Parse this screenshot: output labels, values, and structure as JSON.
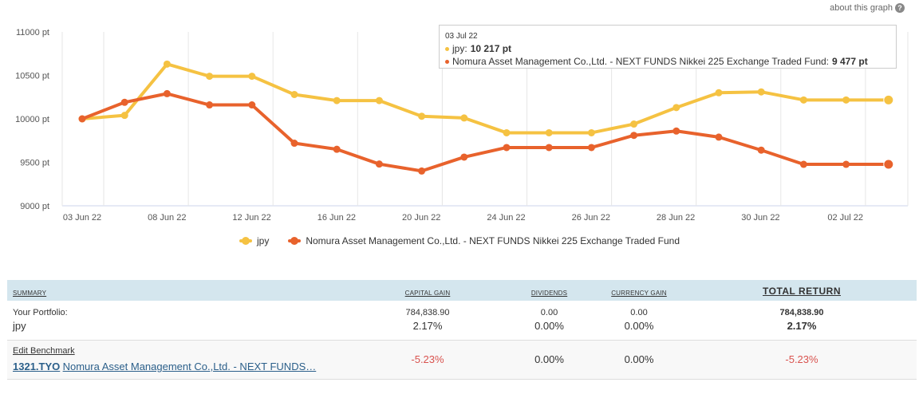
{
  "about": {
    "label": "about this graph",
    "icon": "help-icon"
  },
  "chart_data": {
    "type": "line",
    "y_ticks": [
      "11000 pt",
      "10500 pt",
      "10000 pt",
      "9500 pt",
      "9000 pt"
    ],
    "y_values": [
      11000,
      10500,
      10000,
      9500,
      9000
    ],
    "x_ticks": [
      "03 Jun 22",
      "08 Jun 22",
      "12 Jun 22",
      "16 Jun 22",
      "20 Jun 22",
      "24 Jun 22",
      "26 Jun 22",
      "28 Jun 22",
      "30 Jun 22",
      "02 Jul 22"
    ],
    "ylim": [
      9000,
      11000
    ],
    "grid": "vertical",
    "legend_position": "bottom-center",
    "series": [
      {
        "name": "jpy",
        "color": "#f5c242",
        "values": [
          10000,
          10040,
          10630,
          10490,
          10490,
          10280,
          10210,
          10210,
          10030,
          10010,
          9840,
          9840,
          9840,
          9940,
          10130,
          10300,
          10310,
          10217,
          10217,
          10217
        ]
      },
      {
        "name": "Nomura Asset Management Co.,Ltd. - NEXT FUNDS Nikkei 225 Exchange Traded Fund",
        "color": "#e8622c",
        "values": [
          10000,
          10190,
          10290,
          10160,
          10160,
          9720,
          9650,
          9480,
          9400,
          9560,
          9670,
          9670,
          9670,
          9810,
          9860,
          9790,
          9640,
          9477,
          9477,
          9477
        ]
      }
    ],
    "tooltip": {
      "date": "03 Jul 22",
      "rows": [
        {
          "label": "jpy: ",
          "value": "10 217 pt",
          "color": "#f5c242"
        },
        {
          "label": "Nomura Asset Management Co.,Ltd. - NEXT FUNDS Nikkei 225 Exchange Traded Fund: ",
          "value": "9 477 pt",
          "color": "#e8622c"
        }
      ]
    }
  },
  "summary": {
    "headers": {
      "summary": "SUMMARY",
      "capital_gain": "CAPITAL GAIN",
      "dividends": "DIVIDENDS",
      "currency_gain": "CURRENCY GAIN",
      "total_return": "TOTAL RETURN"
    },
    "portfolio": {
      "label": "Your Portfolio:",
      "name": "jpy",
      "capital_gain_amount": "784,838.90",
      "capital_gain_pct": "2.17%",
      "dividends_amount": "0.00",
      "dividends_pct": "0.00%",
      "currency_gain_amount": "0.00",
      "currency_gain_pct": "0.00%",
      "total_return_amount": "784,838.90",
      "total_return_pct": "2.17%"
    },
    "benchmark": {
      "edit_label": "Edit Benchmark",
      "ticker": "1321.TYO",
      "name": "Nomura Asset Management Co.,Ltd. - NEXT FUNDS…",
      "capital_gain_pct": "-5.23%",
      "dividends_pct": "0.00%",
      "currency_gain_pct": "0.00%",
      "total_return_pct": "-5.23%",
      "negative_color": "#d9534f"
    }
  }
}
